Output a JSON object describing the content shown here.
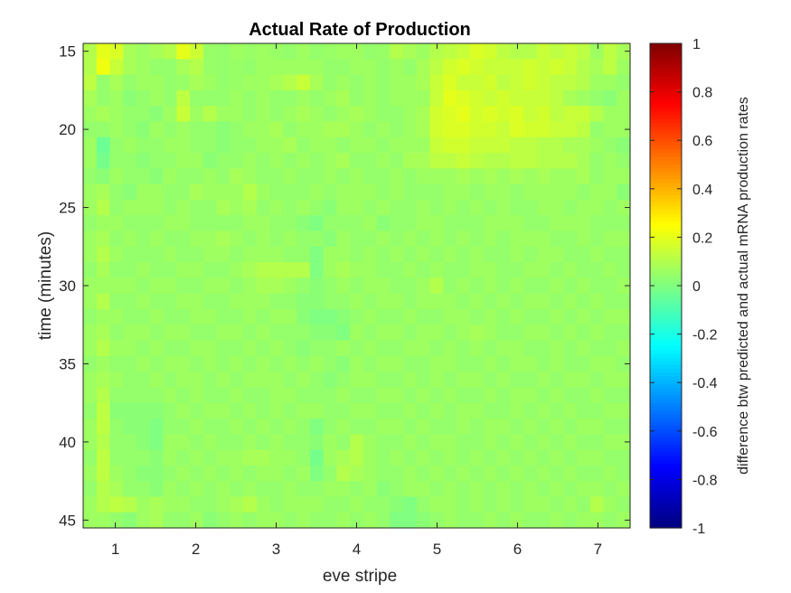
{
  "chart_data": {
    "type": "heatmap",
    "title": "Actual Rate of Production",
    "xlabel": "eve stripe",
    "ylabel": "time (minutes)",
    "colorbar_label": "difference btw predicted and actual mRNA production rates",
    "colormap": "jet",
    "clim": [
      -1,
      1
    ],
    "xlim": [
      0.6,
      7.4
    ],
    "ylim": [
      14.5,
      45.5
    ],
    "y_direction": "reversed",
    "x_ticks": [
      "1",
      "2",
      "3",
      "4",
      "5",
      "6",
      "7"
    ],
    "y_ticks": [
      "15",
      "20",
      "25",
      "30",
      "35",
      "40",
      "45"
    ],
    "colorbar_ticks": [
      "1",
      "0.8",
      "0.6",
      "0.4",
      "0.2",
      "0",
      "-0.2",
      "-0.4",
      "-0.6",
      "-0.8",
      "-1"
    ],
    "grid": false,
    "n_time_bins": 31,
    "n_position_bins": 41,
    "value_range_estimate": [
      -0.12,
      0.25
    ],
    "values": [
      [
        0.1,
        0.2,
        0.18,
        0.08,
        0.06,
        0.08,
        0.1,
        0.2,
        0.15,
        0.05,
        0.04,
        0.06,
        0.05,
        0.06,
        0.05,
        0.04,
        0.06,
        0.04,
        0.05,
        0.06,
        0.06,
        0.04,
        0.05,
        0.1,
        0.08,
        0.06,
        0.1,
        0.12,
        0.14,
        0.18,
        0.16,
        0.12,
        0.1,
        0.1,
        0.14,
        0.12,
        0.14,
        0.12,
        0.06,
        0.12,
        0.08
      ],
      [
        0.1,
        0.22,
        0.14,
        0.08,
        0.06,
        0.04,
        0.04,
        0.08,
        0.1,
        0.05,
        0.04,
        0.05,
        0.04,
        0.06,
        0.06,
        0.06,
        0.06,
        0.06,
        0.04,
        0.04,
        0.06,
        0.06,
        0.04,
        0.06,
        0.04,
        0.08,
        0.12,
        0.16,
        0.18,
        0.16,
        0.14,
        0.14,
        0.14,
        0.16,
        0.14,
        0.16,
        0.14,
        0.1,
        0.08,
        0.12,
        0.06
      ],
      [
        0.12,
        0.04,
        0.08,
        0.04,
        0.06,
        0.06,
        0.04,
        0.05,
        0.08,
        0.06,
        0.04,
        0.05,
        0.06,
        0.06,
        0.08,
        0.1,
        0.14,
        0.08,
        0.04,
        0.06,
        0.04,
        0.06,
        0.04,
        0.06,
        0.06,
        0.08,
        0.14,
        0.18,
        0.14,
        0.14,
        0.16,
        0.12,
        0.14,
        0.16,
        0.14,
        0.12,
        0.12,
        0.1,
        0.06,
        0.06,
        0.04
      ],
      [
        0.08,
        0.04,
        0.06,
        0.02,
        0.04,
        0.06,
        0.04,
        0.12,
        0.04,
        0.04,
        0.04,
        0.06,
        0.04,
        0.06,
        0.04,
        0.04,
        0.06,
        0.04,
        0.06,
        0.08,
        0.04,
        0.06,
        0.04,
        0.06,
        0.06,
        0.06,
        0.14,
        0.2,
        0.18,
        0.16,
        0.14,
        0.16,
        0.14,
        0.14,
        0.14,
        0.12,
        0.08,
        0.06,
        0.04,
        0.02,
        0.06
      ],
      [
        0.06,
        0.08,
        0.06,
        0.04,
        0.04,
        0.02,
        0.06,
        0.14,
        0.06,
        0.1,
        0.06,
        0.06,
        0.04,
        0.06,
        0.04,
        0.06,
        0.08,
        0.06,
        0.04,
        0.06,
        0.08,
        0.06,
        0.04,
        0.04,
        0.06,
        0.08,
        0.16,
        0.18,
        0.2,
        0.16,
        0.18,
        0.16,
        0.18,
        0.14,
        0.16,
        0.12,
        0.14,
        0.14,
        0.1,
        0.06,
        0.06
      ],
      [
        0.04,
        0.04,
        0.06,
        0.04,
        0.02,
        0.06,
        0.04,
        0.06,
        0.04,
        0.04,
        0.02,
        0.04,
        0.06,
        0.06,
        0.08,
        0.04,
        0.06,
        0.06,
        0.08,
        0.08,
        0.06,
        0.04,
        0.06,
        0.04,
        0.06,
        0.08,
        0.16,
        0.18,
        0.18,
        0.16,
        0.16,
        0.14,
        0.18,
        0.16,
        0.16,
        0.14,
        0.14,
        0.12,
        0.04,
        0.06,
        0.06
      ],
      [
        0.06,
        -0.04,
        0.04,
        0.06,
        0.04,
        0.04,
        0.06,
        0.06,
        0.04,
        0.04,
        0.02,
        0.04,
        0.04,
        0.06,
        0.06,
        0.08,
        0.04,
        0.06,
        0.06,
        0.04,
        0.06,
        0.06,
        0.04,
        0.06,
        0.06,
        0.06,
        0.14,
        0.16,
        0.16,
        0.14,
        0.14,
        0.14,
        0.12,
        0.12,
        0.1,
        0.1,
        0.08,
        0.08,
        0.06,
        0.04,
        0.02
      ],
      [
        0.06,
        -0.02,
        0.04,
        0.04,
        0.02,
        0.04,
        0.04,
        0.06,
        0.06,
        0.02,
        0.04,
        0.04,
        0.06,
        0.04,
        0.06,
        0.04,
        0.06,
        0.04,
        0.06,
        0.08,
        0.04,
        0.04,
        0.06,
        0.04,
        0.08,
        0.08,
        0.12,
        0.12,
        0.14,
        0.12,
        0.1,
        0.1,
        0.12,
        0.12,
        0.1,
        0.1,
        0.1,
        0.08,
        0.04,
        0.06,
        0.04
      ],
      [
        0.04,
        0.02,
        0.06,
        0.04,
        0.04,
        0.02,
        0.06,
        0.04,
        0.04,
        0.06,
        0.04,
        0.08,
        0.06,
        0.04,
        0.04,
        0.06,
        0.04,
        0.04,
        0.06,
        0.04,
        0.06,
        0.04,
        0.04,
        0.06,
        0.04,
        0.06,
        0.06,
        0.06,
        0.08,
        0.06,
        0.08,
        0.06,
        0.08,
        0.06,
        0.08,
        0.06,
        0.06,
        0.08,
        0.04,
        0.06,
        0.06
      ],
      [
        0.06,
        0.08,
        0.04,
        0.02,
        0.06,
        0.06,
        0.04,
        0.04,
        0.08,
        0.06,
        0.06,
        0.06,
        0.1,
        0.06,
        0.04,
        0.04,
        0.04,
        0.06,
        0.04,
        0.06,
        0.06,
        0.06,
        0.04,
        0.06,
        0.04,
        0.04,
        0.04,
        0.06,
        0.06,
        0.04,
        0.06,
        0.06,
        0.04,
        0.06,
        0.06,
        0.06,
        0.06,
        0.04,
        0.06,
        0.06,
        0.02
      ],
      [
        0.06,
        0.1,
        0.04,
        0.06,
        0.06,
        0.06,
        0.04,
        0.06,
        0.04,
        0.04,
        0.08,
        0.06,
        0.08,
        0.04,
        0.06,
        0.04,
        0.06,
        0.04,
        0.02,
        0.06,
        0.06,
        0.04,
        0.06,
        0.04,
        0.04,
        0.06,
        0.04,
        0.06,
        0.04,
        0.06,
        0.04,
        0.06,
        0.04,
        0.04,
        0.06,
        0.06,
        0.04,
        0.06,
        0.06,
        0.04,
        0.06
      ],
      [
        0.04,
        0.06,
        0.06,
        0.04,
        0.04,
        0.04,
        0.06,
        0.06,
        0.04,
        0.04,
        0.04,
        0.04,
        0.06,
        0.06,
        0.04,
        0.04,
        0.02,
        0.0,
        0.04,
        0.04,
        0.04,
        0.06,
        0.02,
        0.04,
        0.04,
        0.06,
        0.06,
        0.04,
        0.04,
        0.04,
        0.06,
        0.06,
        0.06,
        0.04,
        0.04,
        0.06,
        0.06,
        0.06,
        0.04,
        0.04,
        0.04
      ],
      [
        0.06,
        0.08,
        0.04,
        0.06,
        0.04,
        0.06,
        0.04,
        0.04,
        0.06,
        0.06,
        0.08,
        0.06,
        0.04,
        0.06,
        0.04,
        0.06,
        0.04,
        0.04,
        0.02,
        0.06,
        0.04,
        0.04,
        0.06,
        0.04,
        0.06,
        0.04,
        0.06,
        0.04,
        0.06,
        0.04,
        0.06,
        0.04,
        0.06,
        0.06,
        0.06,
        0.04,
        0.04,
        0.06,
        0.04,
        0.06,
        0.06
      ],
      [
        0.06,
        0.1,
        0.06,
        0.04,
        0.04,
        0.04,
        0.06,
        0.04,
        0.04,
        0.06,
        0.06,
        0.04,
        0.06,
        0.06,
        0.06,
        0.04,
        0.04,
        0.0,
        0.06,
        0.06,
        0.04,
        0.06,
        0.04,
        0.06,
        0.04,
        0.06,
        0.04,
        0.06,
        0.04,
        0.06,
        0.04,
        0.04,
        0.06,
        0.04,
        0.06,
        0.06,
        0.04,
        0.04,
        0.06,
        0.04,
        0.04
      ],
      [
        0.04,
        0.08,
        0.04,
        0.04,
        0.06,
        0.04,
        0.04,
        0.06,
        0.06,
        0.04,
        0.04,
        0.06,
        0.08,
        0.1,
        0.1,
        0.1,
        0.1,
        0.0,
        0.06,
        0.08,
        0.06,
        0.06,
        0.04,
        0.04,
        0.06,
        0.04,
        0.06,
        0.04,
        0.04,
        0.06,
        0.06,
        0.04,
        0.04,
        0.06,
        0.06,
        0.04,
        0.06,
        0.04,
        0.04,
        0.06,
        0.04
      ],
      [
        0.06,
        0.06,
        0.06,
        0.06,
        0.04,
        0.06,
        0.06,
        0.04,
        0.04,
        0.06,
        0.06,
        0.04,
        0.06,
        0.08,
        0.08,
        0.06,
        0.04,
        0.02,
        0.04,
        0.06,
        0.04,
        0.06,
        0.06,
        0.04,
        0.04,
        0.06,
        0.1,
        0.04,
        0.06,
        0.04,
        0.06,
        0.04,
        0.06,
        0.04,
        0.04,
        0.06,
        0.04,
        0.06,
        0.04,
        0.04,
        0.06
      ],
      [
        0.06,
        0.1,
        0.04,
        0.04,
        0.06,
        0.04,
        0.04,
        0.06,
        0.06,
        0.04,
        0.04,
        0.06,
        0.06,
        0.06,
        0.04,
        0.04,
        0.02,
        0.02,
        0.04,
        0.04,
        0.06,
        0.04,
        0.06,
        0.06,
        0.04,
        0.06,
        0.06,
        0.06,
        0.04,
        0.06,
        0.04,
        0.06,
        0.04,
        0.06,
        0.06,
        0.04,
        0.06,
        0.04,
        0.06,
        0.04,
        0.04
      ],
      [
        0.04,
        0.06,
        0.06,
        0.04,
        0.04,
        0.06,
        0.04,
        0.04,
        0.06,
        0.06,
        0.04,
        0.04,
        0.06,
        0.04,
        0.06,
        0.06,
        0.02,
        0.0,
        0.0,
        0.02,
        0.04,
        0.06,
        0.04,
        0.04,
        0.06,
        0.04,
        0.04,
        0.06,
        0.06,
        0.04,
        0.06,
        0.04,
        0.06,
        0.04,
        0.04,
        0.06,
        0.04,
        0.06,
        0.04,
        0.06,
        0.06
      ],
      [
        0.06,
        0.08,
        0.04,
        0.06,
        0.06,
        0.04,
        0.06,
        0.06,
        0.04,
        0.04,
        0.06,
        0.06,
        0.04,
        0.06,
        0.04,
        0.04,
        0.04,
        0.02,
        0.02,
        0.0,
        0.06,
        0.04,
        0.06,
        0.06,
        0.04,
        0.06,
        0.06,
        0.04,
        0.06,
        0.08,
        0.06,
        0.04,
        0.04,
        0.06,
        0.06,
        0.04,
        0.06,
        0.04,
        0.06,
        0.04,
        0.04
      ],
      [
        0.06,
        0.1,
        0.06,
        0.06,
        0.04,
        0.06,
        0.04,
        0.04,
        0.06,
        0.06,
        0.04,
        0.04,
        0.06,
        0.04,
        0.06,
        0.04,
        0.02,
        0.04,
        0.04,
        0.06,
        0.04,
        0.06,
        0.04,
        0.04,
        0.06,
        0.06,
        0.04,
        0.06,
        0.04,
        0.06,
        0.04,
        0.06,
        0.06,
        0.04,
        0.04,
        0.06,
        0.04,
        0.06,
        0.04,
        0.04,
        0.06
      ],
      [
        0.04,
        0.06,
        0.04,
        0.04,
        0.06,
        0.04,
        0.06,
        0.06,
        0.04,
        0.06,
        0.04,
        0.06,
        0.04,
        0.06,
        0.04,
        0.06,
        0.04,
        0.06,
        0.04,
        0.02,
        0.06,
        0.04,
        0.06,
        0.06,
        0.04,
        0.04,
        0.06,
        0.06,
        0.04,
        0.04,
        0.06,
        0.04,
        0.06,
        0.06,
        0.04,
        0.06,
        0.04,
        0.04,
        0.06,
        0.06,
        0.04
      ],
      [
        0.06,
        0.08,
        0.06,
        0.04,
        0.04,
        0.06,
        0.04,
        0.06,
        0.06,
        0.04,
        0.06,
        0.04,
        0.06,
        0.06,
        0.06,
        0.04,
        0.06,
        0.04,
        0.02,
        0.04,
        0.06,
        0.06,
        0.04,
        0.04,
        0.06,
        0.04,
        0.06,
        0.04,
        0.06,
        0.06,
        0.04,
        0.06,
        0.04,
        0.04,
        0.06,
        0.04,
        0.06,
        0.06,
        0.04,
        0.06,
        0.06
      ],
      [
        0.06,
        0.1,
        0.04,
        0.04,
        0.04,
        0.04,
        0.06,
        0.04,
        0.06,
        0.04,
        0.04,
        0.06,
        0.04,
        0.04,
        0.06,
        0.06,
        0.04,
        0.04,
        0.04,
        0.06,
        0.04,
        0.04,
        0.06,
        0.06,
        0.04,
        0.06,
        0.04,
        0.06,
        0.04,
        0.04,
        0.06,
        0.04,
        0.06,
        0.06,
        0.04,
        0.06,
        0.04,
        0.04,
        0.06,
        0.04,
        0.04
      ],
      [
        0.04,
        0.12,
        0.02,
        0.02,
        0.02,
        0.02,
        0.04,
        0.06,
        0.04,
        0.06,
        0.06,
        0.04,
        0.06,
        0.04,
        0.06,
        0.04,
        0.06,
        0.06,
        0.04,
        0.04,
        0.06,
        0.06,
        0.04,
        0.04,
        0.06,
        0.04,
        0.06,
        0.04,
        0.06,
        0.06,
        0.04,
        0.04,
        0.06,
        0.04,
        0.06,
        0.04,
        0.06,
        0.04,
        0.04,
        0.06,
        0.06
      ],
      [
        0.06,
        0.12,
        0.04,
        0.02,
        0.02,
        0.0,
        0.04,
        0.04,
        0.06,
        0.04,
        0.04,
        0.06,
        0.04,
        0.06,
        0.04,
        0.06,
        0.04,
        0.0,
        0.04,
        0.06,
        0.04,
        0.04,
        0.06,
        0.06,
        0.04,
        0.06,
        0.04,
        0.04,
        0.06,
        0.04,
        0.06,
        0.06,
        0.04,
        0.06,
        0.04,
        0.06,
        0.04,
        0.06,
        0.06,
        0.04,
        0.04
      ],
      [
        0.06,
        0.1,
        0.04,
        0.04,
        0.02,
        0.0,
        0.06,
        0.06,
        0.04,
        0.06,
        0.04,
        0.04,
        0.06,
        0.04,
        0.06,
        0.04,
        0.04,
        0.02,
        0.06,
        0.04,
        0.1,
        0.06,
        0.04,
        0.04,
        0.06,
        0.04,
        0.06,
        0.06,
        0.04,
        0.04,
        0.06,
        0.04,
        0.06,
        0.04,
        0.06,
        0.04,
        0.06,
        0.04,
        0.04,
        0.06,
        0.06
      ],
      [
        0.04,
        0.12,
        0.04,
        0.04,
        0.04,
        0.02,
        0.06,
        0.04,
        0.06,
        0.04,
        0.06,
        0.06,
        0.08,
        0.08,
        0.06,
        0.06,
        0.04,
        -0.02,
        0.06,
        0.08,
        0.1,
        0.06,
        0.04,
        0.06,
        0.04,
        0.06,
        0.04,
        0.06,
        0.04,
        0.06,
        0.04,
        0.06,
        0.04,
        0.06,
        0.04,
        0.06,
        0.04,
        0.06,
        0.06,
        0.04,
        0.04
      ],
      [
        0.06,
        0.12,
        0.06,
        0.04,
        0.02,
        0.02,
        0.04,
        0.06,
        0.04,
        0.06,
        0.04,
        0.06,
        0.04,
        0.06,
        0.06,
        0.04,
        0.06,
        0.0,
        0.04,
        0.1,
        0.08,
        0.06,
        0.04,
        0.04,
        0.06,
        0.04,
        0.06,
        0.04,
        0.06,
        0.04,
        0.06,
        0.04,
        0.06,
        0.04,
        0.06,
        0.04,
        0.06,
        0.04,
        0.04,
        0.06,
        0.04
      ],
      [
        0.04,
        0.1,
        0.08,
        0.04,
        0.04,
        0.02,
        0.06,
        0.04,
        0.06,
        0.04,
        0.06,
        0.04,
        0.06,
        0.04,
        0.04,
        0.06,
        0.04,
        0.04,
        0.06,
        0.06,
        0.04,
        0.06,
        0.02,
        0.04,
        0.06,
        0.06,
        0.04,
        0.06,
        0.04,
        0.06,
        0.04,
        0.06,
        0.04,
        0.06,
        0.04,
        0.06,
        0.04,
        0.06,
        0.06,
        0.04,
        0.06
      ],
      [
        0.06,
        0.1,
        0.12,
        0.1,
        0.06,
        0.08,
        0.06,
        0.06,
        0.04,
        0.04,
        0.06,
        0.08,
        0.1,
        0.06,
        0.04,
        0.06,
        0.06,
        0.06,
        0.04,
        0.04,
        0.06,
        0.04,
        0.04,
        0.02,
        0.0,
        0.04,
        0.06,
        0.06,
        0.04,
        0.06,
        0.04,
        0.06,
        0.04,
        0.06,
        0.06,
        0.04,
        0.06,
        0.04,
        0.1,
        0.06,
        0.04
      ],
      [
        0.06,
        0.06,
        0.04,
        0.02,
        0.06,
        0.08,
        0.04,
        0.04,
        0.06,
        0.02,
        0.04,
        0.06,
        0.04,
        0.06,
        0.06,
        0.04,
        0.06,
        0.04,
        0.04,
        0.06,
        0.04,
        0.06,
        0.04,
        0.0,
        0.0,
        0.02,
        0.04,
        0.06,
        0.04,
        0.04,
        0.06,
        0.04,
        0.06,
        0.04,
        0.04,
        0.06,
        0.04,
        0.06,
        0.06,
        0.04,
        0.06
      ]
    ]
  }
}
